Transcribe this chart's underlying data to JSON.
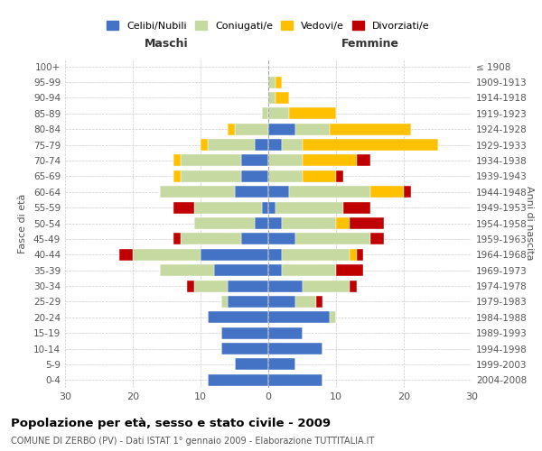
{
  "age_groups": [
    "0-4",
    "5-9",
    "10-14",
    "15-19",
    "20-24",
    "25-29",
    "30-34",
    "35-39",
    "40-44",
    "45-49",
    "50-54",
    "55-59",
    "60-64",
    "65-69",
    "70-74",
    "75-79",
    "80-84",
    "85-89",
    "90-94",
    "95-99",
    "100+"
  ],
  "birth_years": [
    "2004-2008",
    "1999-2003",
    "1994-1998",
    "1989-1993",
    "1984-1988",
    "1979-1983",
    "1974-1978",
    "1969-1973",
    "1964-1968",
    "1959-1963",
    "1954-1958",
    "1949-1953",
    "1944-1948",
    "1939-1943",
    "1934-1938",
    "1929-1933",
    "1924-1928",
    "1919-1923",
    "1914-1918",
    "1909-1913",
    "≤ 1908"
  ],
  "male": {
    "celibi": [
      9,
      5,
      7,
      7,
      9,
      6,
      6,
      8,
      10,
      4,
      2,
      1,
      5,
      4,
      4,
      2,
      0,
      0,
      0,
      0,
      0
    ],
    "coniugati": [
      0,
      0,
      0,
      0,
      0,
      1,
      5,
      8,
      10,
      9,
      9,
      10,
      11,
      9,
      9,
      7,
      5,
      1,
      0,
      0,
      0
    ],
    "vedovi": [
      0,
      0,
      0,
      0,
      0,
      0,
      0,
      0,
      0,
      0,
      0,
      0,
      0,
      1,
      1,
      1,
      1,
      0,
      0,
      0,
      0
    ],
    "divorziati": [
      0,
      0,
      0,
      0,
      0,
      0,
      1,
      0,
      2,
      1,
      0,
      3,
      0,
      0,
      0,
      0,
      0,
      0,
      0,
      0,
      0
    ]
  },
  "female": {
    "nubili": [
      8,
      4,
      8,
      5,
      9,
      4,
      5,
      2,
      2,
      4,
      2,
      1,
      3,
      0,
      0,
      2,
      4,
      0,
      0,
      0,
      0
    ],
    "coniugate": [
      0,
      0,
      0,
      0,
      1,
      3,
      7,
      8,
      10,
      11,
      8,
      10,
      12,
      5,
      5,
      3,
      5,
      3,
      1,
      1,
      0
    ],
    "vedove": [
      0,
      0,
      0,
      0,
      0,
      0,
      0,
      0,
      1,
      0,
      2,
      0,
      5,
      5,
      8,
      20,
      12,
      7,
      2,
      1,
      0
    ],
    "divorziate": [
      0,
      0,
      0,
      0,
      0,
      1,
      1,
      4,
      1,
      2,
      5,
      4,
      1,
      1,
      2,
      0,
      0,
      0,
      0,
      0,
      0
    ]
  },
  "colors": {
    "celibi": "#4472c4",
    "coniugati": "#c5d9a0",
    "vedovi": "#ffc000",
    "divorziati": "#c00000"
  },
  "xlim": 30,
  "title_main": "Popolazione per età, sesso e stato civile - 2009",
  "title_sub": "COMUNE DI ZERBO (PV) - Dati ISTAT 1° gennaio 2009 - Elaborazione TUTTITALIA.IT",
  "ylabel_left": "Fasce di età",
  "ylabel_right": "Anni di nascita",
  "xlabel_left": "Maschi",
  "xlabel_right": "Femmine",
  "legend_labels": [
    "Celibi/Nubili",
    "Coniugati/e",
    "Vedovi/e",
    "Divorziati/e"
  ],
  "bg_color": "#ffffff",
  "grid_color": "#cccccc"
}
